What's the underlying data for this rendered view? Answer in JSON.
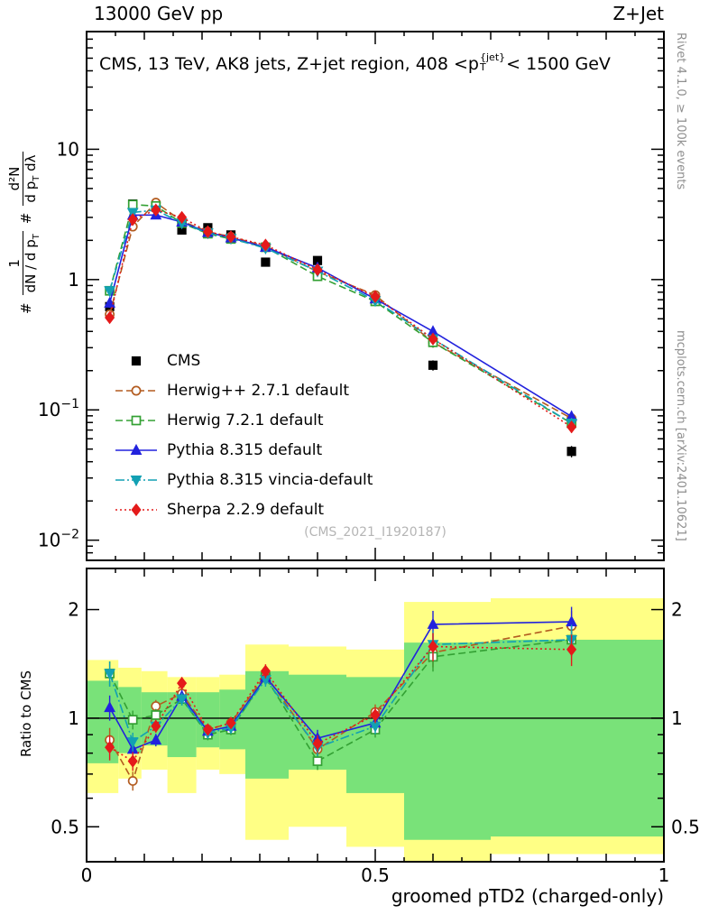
{
  "header": {
    "left": "13000 GeV pp",
    "right": "Z+Jet"
  },
  "title": {
    "prefix": "CMS, 13 TeV, AK8 jets, Z+jet region, 408 <p",
    "sup": "{jet}",
    "sub": "T",
    "suffix": "< 1500 GeV"
  },
  "ylabel_main": {
    "hash1": "#",
    "frac1_num": "1",
    "frac1_den_a": "dN / d p",
    "frac1_den_sub": "T",
    "hash2": "#",
    "frac2_num": "d²N",
    "frac2_den_a": "d p",
    "frac2_den_sub": "T",
    "frac2_den_b": " dλ"
  },
  "ylabel_ratio": "Ratio to CMS",
  "xlabel": "groomed pTD2 (charged-only)",
  "side_notes": {
    "top_right": "Rivet 4.1.0, ≥ 100k events",
    "bottom_right": "mcplots.cern.ch [arXiv:2401.10621]"
  },
  "watermark": "(CMS_2021_I1920187)",
  "chart_data": {
    "type": "line",
    "title": "CMS, 13 TeV, AK8 jets, Z+jet region, 408 <pT{jet}< 1500 GeV",
    "xlabel": "groomed pTD2 (charged-only)",
    "xlim": [
      0,
      1
    ],
    "xticks_labeled": {
      "values": [
        0,
        0.5,
        1
      ],
      "labels": [
        "0",
        "0.5",
        "1"
      ]
    },
    "main_panel": {
      "ylabel": "# 1/(dN/dpT) # d2N/(dpT dlambda)",
      "yscale": "log",
      "ylim": [
        0.007,
        80
      ],
      "yticks_labeled": {
        "values": [
          0.01,
          0.1,
          1,
          10
        ],
        "exponents": [
          -2,
          -1,
          0,
          1
        ]
      }
    },
    "ratio_panel": {
      "ylabel": "Ratio to CMS",
      "yscale": "log",
      "ylim": [
        0.4,
        2.6
      ],
      "yticks_labeled": {
        "values": [
          0.5,
          1,
          2
        ],
        "labels": [
          "0.5",
          "1",
          "2"
        ]
      },
      "yticks_minor": [
        0.4,
        0.6,
        0.7,
        0.8,
        0.9
      ],
      "reference_line": 1
    },
    "x": [
      0.04,
      0.08,
      0.12,
      0.165,
      0.21,
      0.25,
      0.31,
      0.4,
      0.5,
      0.6,
      0.84
    ],
    "rel_err": [
      0.08,
      0.06,
      0.04,
      0.04,
      0.035,
      0.035,
      0.045,
      0.055,
      0.05,
      0.09,
      0.1
    ],
    "series": [
      {
        "name": "CMS",
        "color": "#000000",
        "marker": "square",
        "fill": "solid",
        "linestyle": "none",
        "values": [
          0.62,
          3.8,
          3.6,
          2.4,
          2.5,
          2.2,
          1.36,
          1.4,
          0.73,
          0.22,
          0.048
        ]
      },
      {
        "name": "Herwig++ 2.7.1 default",
        "color": "#b35c20",
        "marker": "circle",
        "fill": "open",
        "linestyle": "dashed",
        "values": [
          0.54,
          2.55,
          3.89,
          2.81,
          2.33,
          2.13,
          1.8,
          1.15,
          0.76,
          0.33,
          0.086
        ],
        "ratio": [
          0.87,
          0.67,
          1.08,
          1.17,
          0.93,
          0.97,
          1.32,
          0.82,
          1.04,
          1.52,
          1.8
        ]
      },
      {
        "name": "Herwig 7.2.1 default",
        "color": "#33a033",
        "marker": "square",
        "fill": "open",
        "linestyle": "dashed",
        "values": [
          0.82,
          3.76,
          3.67,
          2.71,
          2.25,
          2.05,
          1.77,
          1.06,
          0.68,
          0.33,
          0.079
        ],
        "ratio": [
          1.33,
          0.99,
          1.02,
          1.13,
          0.9,
          0.93,
          1.3,
          0.76,
          0.93,
          1.48,
          1.65
        ]
      },
      {
        "name": "Pythia 8.315 default",
        "color": "#2222dd",
        "marker": "triangle-up",
        "fill": "solid",
        "linestyle": "solid",
        "values": [
          0.66,
          3.12,
          3.13,
          2.76,
          2.3,
          2.09,
          1.77,
          1.23,
          0.71,
          0.4,
          0.089
        ],
        "ratio": [
          1.07,
          0.82,
          0.87,
          1.15,
          0.92,
          0.95,
          1.3,
          0.88,
          0.97,
          1.82,
          1.85
        ]
      },
      {
        "name": "Pythia 8.315 vincia-default",
        "color": "#12a0b3",
        "marker": "triangle-down",
        "fill": "solid",
        "linestyle": "dashdot",
        "values": [
          0.82,
          3.27,
          3.42,
          2.71,
          2.28,
          2.07,
          1.74,
          1.16,
          0.69,
          0.35,
          0.079
        ],
        "ratio": [
          1.33,
          0.86,
          0.95,
          1.13,
          0.91,
          0.94,
          1.28,
          0.83,
          0.95,
          1.6,
          1.65
        ]
      },
      {
        "name": "Sherpa 2.2.9 default",
        "color": "#e41a1a",
        "marker": "diamond",
        "fill": "solid",
        "linestyle": "dotted",
        "values": [
          0.51,
          2.89,
          3.42,
          3.0,
          2.33,
          2.13,
          1.84,
          1.19,
          0.74,
          0.35,
          0.074
        ],
        "ratio": [
          0.83,
          0.76,
          0.95,
          1.25,
          0.93,
          0.97,
          1.35,
          0.85,
          1.02,
          1.58,
          1.55
        ]
      }
    ],
    "bands": {
      "yellow_color": "#ffff85",
      "green_color": "#79e279",
      "yellow": [
        [
          0.0,
          0.055,
          0.62,
          1.45
        ],
        [
          0.055,
          0.095,
          0.68,
          1.38
        ],
        [
          0.095,
          0.14,
          0.72,
          1.35
        ],
        [
          0.14,
          0.19,
          0.62,
          1.3
        ],
        [
          0.19,
          0.23,
          0.72,
          1.3
        ],
        [
          0.23,
          0.275,
          0.7,
          1.32
        ],
        [
          0.275,
          0.35,
          0.46,
          1.6
        ],
        [
          0.35,
          0.45,
          0.5,
          1.58
        ],
        [
          0.45,
          0.55,
          0.44,
          1.55
        ],
        [
          0.55,
          0.7,
          0.4,
          2.1
        ],
        [
          0.7,
          1.0,
          0.42,
          2.15
        ]
      ],
      "green": [
        [
          0.0,
          0.055,
          0.75,
          1.27
        ],
        [
          0.055,
          0.095,
          0.8,
          1.22
        ],
        [
          0.095,
          0.14,
          0.84,
          1.18
        ],
        [
          0.14,
          0.19,
          0.78,
          1.18
        ],
        [
          0.19,
          0.23,
          0.83,
          1.18
        ],
        [
          0.23,
          0.275,
          0.82,
          1.2
        ],
        [
          0.275,
          0.35,
          0.68,
          1.35
        ],
        [
          0.35,
          0.45,
          0.72,
          1.32
        ],
        [
          0.45,
          0.55,
          0.62,
          1.3
        ],
        [
          0.55,
          0.7,
          0.46,
          1.62
        ],
        [
          0.7,
          1.0,
          0.47,
          1.65
        ]
      ]
    }
  }
}
